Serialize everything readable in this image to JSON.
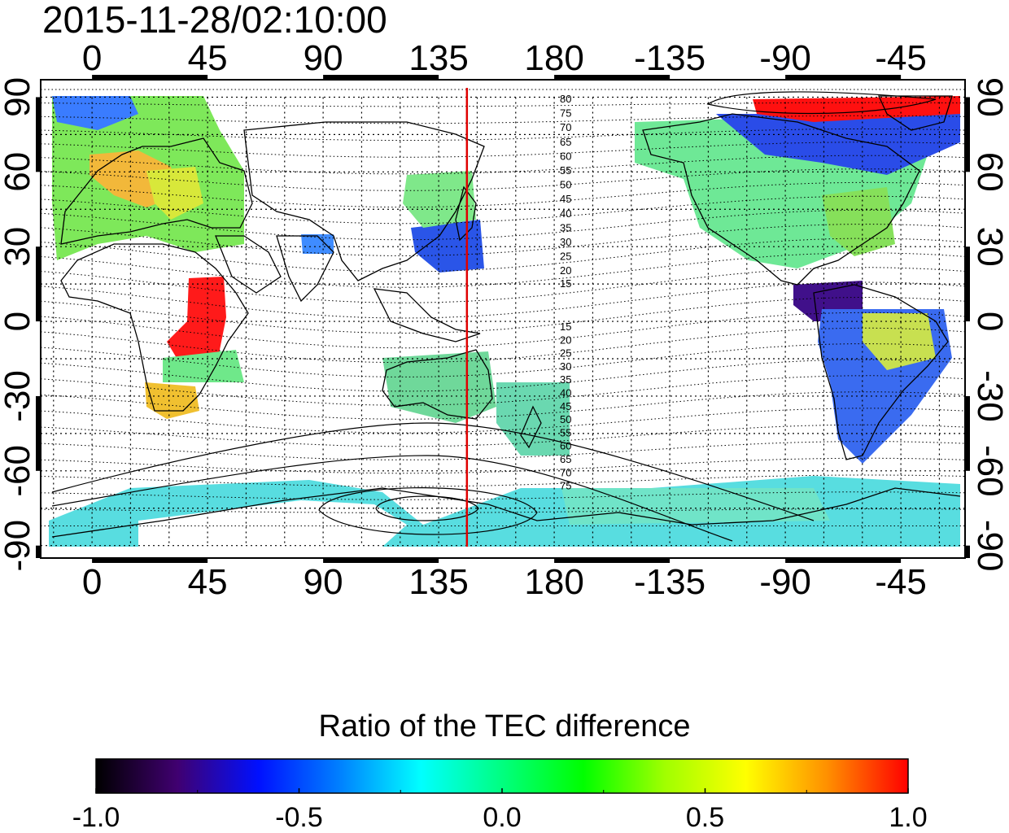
{
  "timestamp": "2015-11-28/02:10:00",
  "map": {
    "lon_ticks_top": [
      "0",
      "45",
      "90",
      "135",
      "180",
      "-135",
      "-90",
      "-45"
    ],
    "lon_ticks_bottom": [
      "0",
      "45",
      "90",
      "135",
      "180",
      "-135",
      "-90",
      "-45"
    ],
    "lon_tick_values": [
      0,
      45,
      90,
      135,
      180,
      225,
      270,
      315
    ],
    "lat_ticks_left": [
      "90",
      "60",
      "30",
      "0",
      "-30",
      "-60",
      "-90"
    ],
    "lat_ticks_right": [
      "90",
      "60",
      "30",
      "0",
      "-30",
      "-60",
      "-90"
    ],
    "lat_tick_values": [
      90,
      60,
      30,
      0,
      -30,
      -60,
      -90
    ],
    "lon_range": [
      -20,
      340
    ],
    "lat_range": [
      -95,
      97
    ],
    "terminator_longitude": 146,
    "terminator_color": "#e00000",
    "contour_labels_north": [
      "80",
      "75",
      "70",
      "65",
      "60",
      "55",
      "50",
      "45",
      "40",
      "35",
      "30",
      "25",
      "20",
      "15"
    ],
    "contour_labels_south": [
      "15",
      "20",
      "25",
      "30",
      "35",
      "40",
      "45",
      "50",
      "55",
      "60",
      "65",
      "70",
      "75"
    ]
  },
  "colorbar": {
    "title": "Ratio of the TEC difference",
    "tick_labels": [
      "-1.0",
      "-0.5",
      "0.0",
      "0.5",
      "1.0"
    ],
    "range": [
      -1.0,
      1.0
    ],
    "colors": [
      "#000000",
      "#400070",
      "#0010ff",
      "#0080ff",
      "#00ffff",
      "#00ff80",
      "#00ff00",
      "#a0ff00",
      "#ffff00",
      "#ff9000",
      "#ff0000"
    ]
  }
}
